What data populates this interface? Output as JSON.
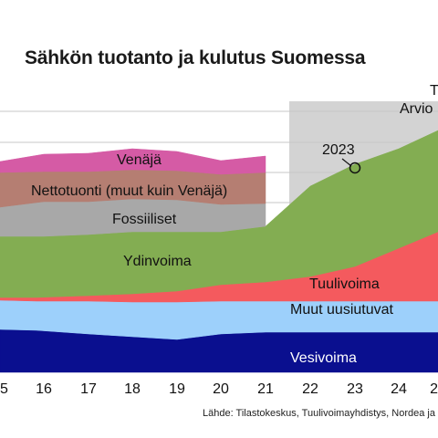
{
  "chart_data": {
    "type": "area",
    "title": "Sähkön tuotanto ja kulutus Suomessa",
    "x_tick_labels": [
      "5",
      "16",
      "17",
      "18",
      "19",
      "20",
      "21",
      "22",
      "23",
      "24",
      "2"
    ],
    "grid": true,
    "series": [
      {
        "name": "Vesivoima",
        "color": "#0a0f8f",
        "label_color": "light"
      },
      {
        "name": "Muut uusiutuvat",
        "color": "#9dd0fb",
        "label_color": "dark"
      },
      {
        "name": "Tuulivoima",
        "color": "#f45a5e",
        "label_color": "dark"
      },
      {
        "name": "Ydinvoima",
        "color": "#83ad52",
        "label_color": "dark"
      },
      {
        "name": "Fossiiliset",
        "color": "#a8a8a8",
        "label_color": "dark"
      },
      {
        "name": "Nettotuonti (muut kuin Venäjä)",
        "color": "#b57e72",
        "label_color": "dark"
      },
      {
        "name": "Venäjä",
        "color": "#d55ba5",
        "label_color": "dark"
      }
    ],
    "annotations": {
      "year_marker": "2023",
      "forecast_label": "Arvio",
      "forecast_label_partial": "T"
    },
    "source": "Lähde: Tilastokeskus, Tuulivoimayhdistys, Nordea ja"
  }
}
